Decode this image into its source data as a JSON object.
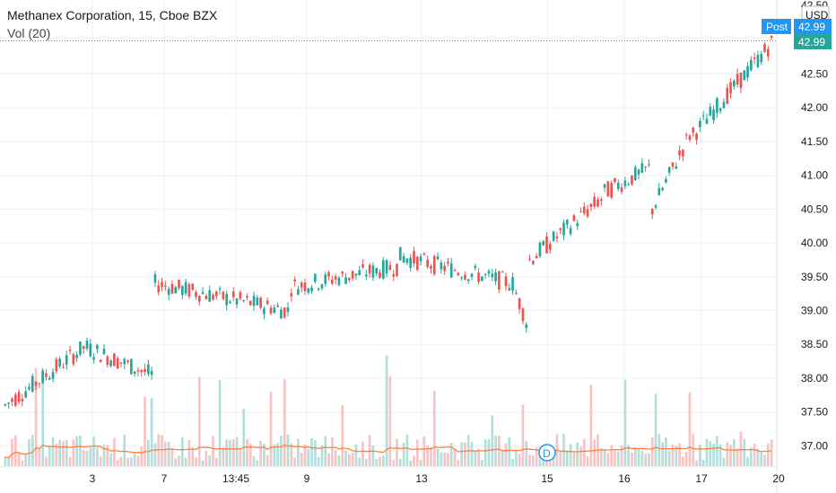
{
  "header": {
    "title": "Methanex Corporation, 15, Cboe BZX",
    "volume_legend": "Vol (20)"
  },
  "currency": "USD",
  "post_label": "Post",
  "last_price_label": "42.99",
  "post_price_label": "42.99",
  "dividend_marker": "D",
  "colors": {
    "up": "#26a69a",
    "down": "#ef5350",
    "volume_up": "#b2dfdb",
    "volume_down": "#f7c3c3",
    "volume_ma": "#ff7f3f",
    "post_badge": "#2196f3",
    "price_badge": "#26a69a"
  },
  "chart_data": {
    "type": "candlestick",
    "title": "Methanex Corporation, 15, Cboe BZX",
    "y_ticks": [
      "42.50",
      "42.00",
      "41.50",
      "41.00",
      "40.50",
      "40.00",
      "39.50",
      "39.00",
      "38.50",
      "38.00",
      "37.50",
      "37.00"
    ],
    "y_top_partial_label": "42.50",
    "ylim": [
      36.7,
      43.5
    ],
    "x_ticks": [
      "3",
      "7",
      "13:45",
      "9",
      "13",
      "15",
      "16",
      "17",
      "20"
    ],
    "last_price": 42.99,
    "segments": [
      {
        "label": "start",
        "bars": 24,
        "start": 37.6,
        "end": 38.45,
        "drift": 0
      },
      {
        "label": "3",
        "bars": 20,
        "start": 38.45,
        "end": 38.05,
        "drift": 0
      },
      {
        "label": "7",
        "bars": 40,
        "start": 39.4,
        "end": 39.0,
        "drift": 0
      },
      {
        "label": "9",
        "bars": 32,
        "start": 39.35,
        "end": 39.65,
        "drift": 0
      },
      {
        "label": "13",
        "bars": 34,
        "start": 39.8,
        "end": 39.4,
        "drift": 0
      },
      {
        "label": "15a",
        "bars": 4,
        "start": 39.25,
        "end": 38.85,
        "drift": 0
      },
      {
        "label": "15",
        "bars": 22,
        "start": 39.75,
        "end": 40.65,
        "drift": 0
      },
      {
        "label": "16",
        "bars": 14,
        "start": 40.75,
        "end": 41.1,
        "drift": 0
      },
      {
        "label": "16b",
        "bars": 12,
        "start": 40.5,
        "end": 41.6,
        "drift": 0
      },
      {
        "label": "17",
        "bars": 24,
        "start": 41.6,
        "end": 42.95,
        "drift": 0
      }
    ]
  }
}
